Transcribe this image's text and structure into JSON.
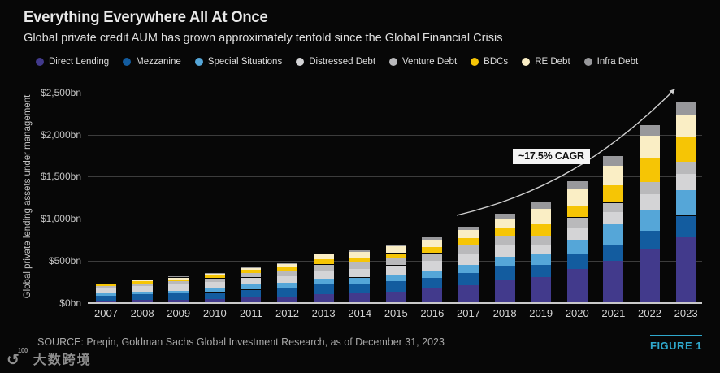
{
  "header": {
    "title": "Everything Everywhere All At Once",
    "subtitle": "Global private credit AUM has grown approximately tenfold since the Global Financial Crisis"
  },
  "chart_data": {
    "type": "bar",
    "stacked": true,
    "title": "Everything Everywhere All At Once",
    "subtitle": "Global private credit AUM has grown approximately tenfold since the Global Financial Crisis",
    "xlabel": "",
    "ylabel": "Global private lending assets under management",
    "unit": "$bn",
    "ylim": [
      0,
      2500
    ],
    "grid": true,
    "legend_position": "top",
    "y_ticks": [
      {
        "value": 0,
        "label": "$0bn"
      },
      {
        "value": 500,
        "label": "$500bn"
      },
      {
        "value": 1000,
        "label": "$1,000bn"
      },
      {
        "value": 1500,
        "label": "$1,500bn"
      },
      {
        "value": 2000,
        "label": "$2,000bn"
      },
      {
        "value": 2500,
        "label": "$2,500bn"
      }
    ],
    "categories": [
      "2007",
      "2008",
      "2009",
      "2010",
      "2011",
      "2012",
      "2013",
      "2014",
      "2015",
      "2016",
      "2017",
      "2018",
      "2019",
      "2020",
      "2021",
      "2022",
      "2023"
    ],
    "series": [
      {
        "name": "Direct Lending",
        "color": "#423a8c",
        "values": [
          20,
          30,
          35,
          40,
          65,
          75,
          100,
          110,
          130,
          165,
          210,
          280,
          305,
          405,
          500,
          630,
          780
        ]
      },
      {
        "name": "Mezzanine",
        "color": "#135c9f",
        "values": [
          65,
          70,
          75,
          85,
          90,
          100,
          115,
          115,
          125,
          130,
          140,
          160,
          145,
          175,
          180,
          225,
          255
        ]
      },
      {
        "name": "Special Situations",
        "color": "#55a6d8",
        "values": [
          25,
          30,
          35,
          40,
          65,
          60,
          70,
          75,
          80,
          90,
          100,
          110,
          130,
          175,
          250,
          245,
          305
        ]
      },
      {
        "name": "Distressed Debt",
        "color": "#d4d4d6",
        "values": [
          60,
          70,
          75,
          85,
          80,
          80,
          95,
          100,
          110,
          115,
          130,
          130,
          115,
          140,
          150,
          190,
          190
        ]
      },
      {
        "name": "Venture Debt",
        "color": "#b9b9bb",
        "values": [
          25,
          30,
          35,
          40,
          55,
          58,
          75,
          80,
          85,
          90,
          100,
          110,
          95,
          120,
          110,
          150,
          150
        ]
      },
      {
        "name": "BDCs",
        "color": "#f6c505",
        "values": [
          20,
          25,
          25,
          30,
          40,
          55,
          60,
          55,
          60,
          70,
          85,
          100,
          145,
          130,
          210,
          290,
          290
        ]
      },
      {
        "name": "RE Debt",
        "color": "#faeec5",
        "values": [
          10,
          15,
          20,
          25,
          16,
          32,
          60,
          70,
          80,
          90,
          100,
          110,
          185,
          210,
          230,
          260,
          255
        ]
      },
      {
        "name": "Infra Debt",
        "color": "#98989b",
        "values": [
          5,
          8,
          10,
          10,
          8,
          10,
          15,
          20,
          25,
          30,
          40,
          55,
          80,
          90,
          115,
          120,
          160
        ]
      }
    ],
    "annotation": {
      "label": "~17.5% CAGR"
    }
  },
  "footer": {
    "source": "SOURCE: Preqin, Goldman Sachs Global Investment Research, as of December 31, 2023",
    "figure_label": "FIGURE 1",
    "watermark_logo_text": "100",
    "watermark": "大数跨境"
  },
  "colors": {
    "background": "#070707",
    "gridline": "#3c3c3c",
    "axis_line": "#c9c9c9",
    "arrow": "#cfcfcf",
    "annotation_bg": "#f4f4f4",
    "annotation_text": "#111111",
    "accent_teal": "#2fa8cc"
  }
}
